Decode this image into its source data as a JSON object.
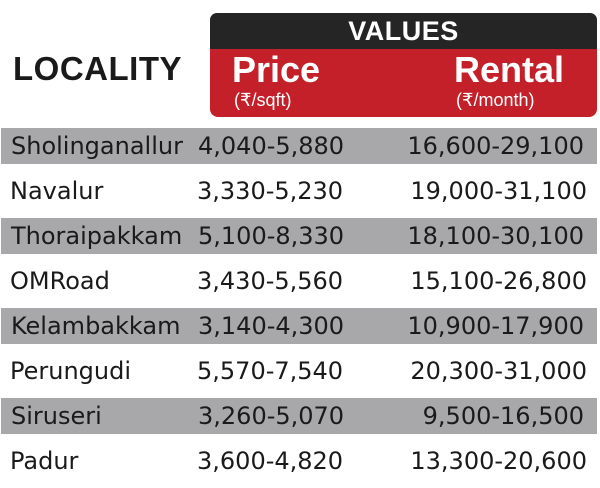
{
  "header": {
    "locality": "LOCALITY",
    "values": "VALUES",
    "price_label": "Price",
    "price_unit": "(₹/sqft)",
    "rental_label": "Rental",
    "rental_unit": "(₹/month)"
  },
  "rows": [
    {
      "locality": "Sholinganallur",
      "price": "4,040-5,880",
      "rental": "16,600-29,100"
    },
    {
      "locality": "Navalur",
      "price": "3,330-5,230",
      "rental": "19,000-31,100"
    },
    {
      "locality": "Thoraipakkam",
      "price": "5,100-8,330",
      "rental": "18,100-30,100"
    },
    {
      "locality": "OMRoad",
      "price": "3,430-5,560",
      "rental": "15,100-26,800"
    },
    {
      "locality": "Kelambakkam",
      "price": "3,140-4,300",
      "rental": "10,900-17,900"
    },
    {
      "locality": "Perungudi",
      "price": "5,570-7,540",
      "rental": "20,300-31,000"
    },
    {
      "locality": "Siruseri",
      "price": "3,260-5,070",
      "rental": "9,500-16,500"
    },
    {
      "locality": "Padur",
      "price": "3,600-4,820",
      "rental": "13,300-20,600"
    }
  ],
  "colors": {
    "header_dark": "#252525",
    "header_red": "#c3202a",
    "row_shade": "#a8a8aa"
  }
}
